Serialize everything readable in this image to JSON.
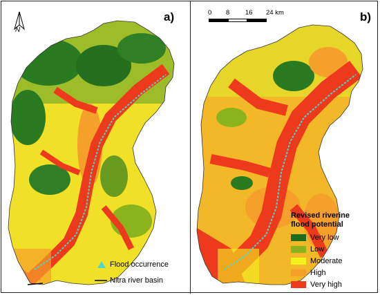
{
  "panels": [
    {
      "label": "a)"
    },
    {
      "label": "b)"
    }
  ],
  "north_arrow": {
    "letter": "N"
  },
  "scale_bar": {
    "ticks": [
      "0",
      "8",
      "16",
      "24 km"
    ]
  },
  "legend_a": {
    "flood_occurrence": "Flood occurrence",
    "basin": "Nitra river basin",
    "flood_marker_color": "#4fd6c8",
    "basin_line_color": "#000000"
  },
  "legend_b": {
    "title_line1": "Revised riverine",
    "title_line2": "flood potential",
    "classes": [
      {
        "label": "Very low",
        "color": "#1e6b1e"
      },
      {
        "label": "Low",
        "color": "#8ab31e"
      },
      {
        "label": "Moderate",
        "color": "#f2f21e"
      },
      {
        "label": "High",
        "color": "#f5a02a"
      },
      {
        "label": "Very high",
        "color": "#ee3a1c"
      }
    ]
  }
}
